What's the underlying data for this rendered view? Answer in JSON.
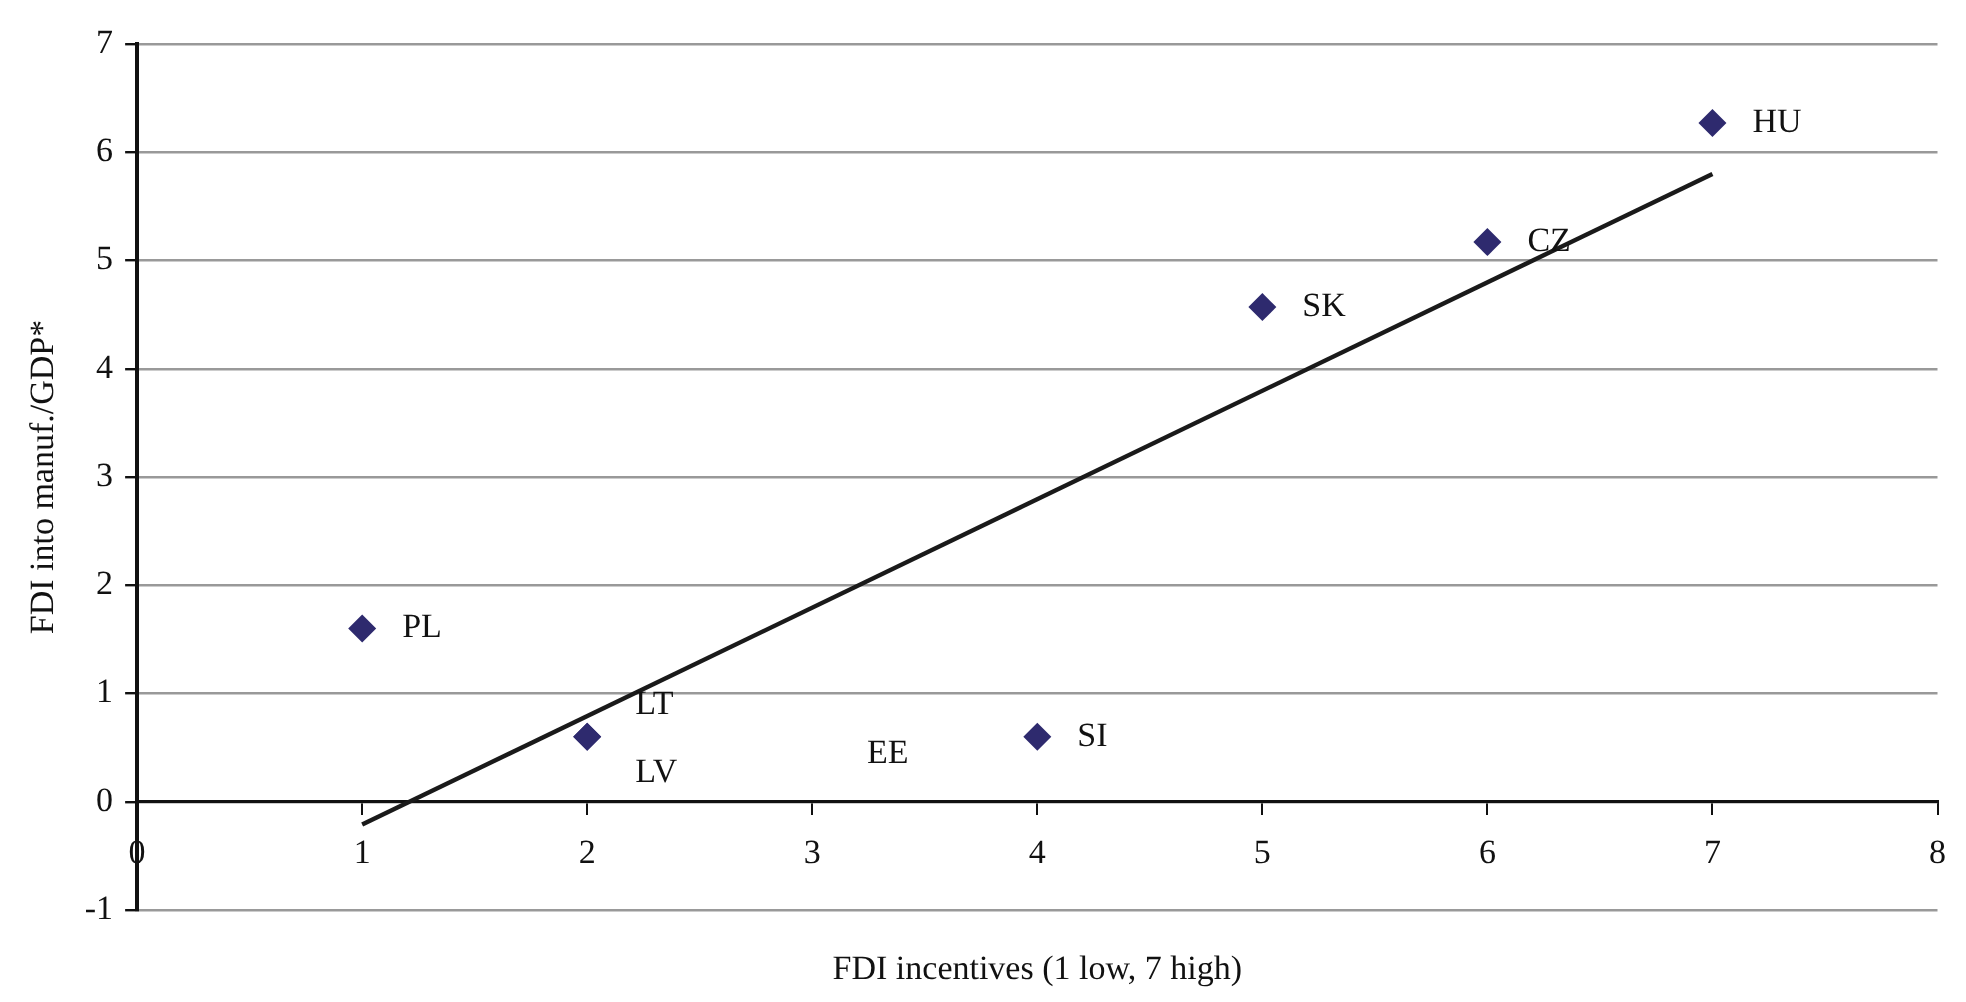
{
  "chart_data": {
    "type": "scatter",
    "xlabel": "FDI incentives (1 low, 7 high)",
    "ylabel": "FDI into manuf./GDP*",
    "xlim": [
      0,
      8
    ],
    "xticks": [
      0,
      1,
      2,
      3,
      4,
      5,
      6,
      7,
      8
    ],
    "ylim": [
      -1,
      7
    ],
    "yticks": [
      -1,
      0,
      1,
      2,
      3,
      4,
      5,
      6,
      7
    ],
    "grid": "y",
    "legend": false,
    "marker": "diamond",
    "series": [
      {
        "color": "#2e2a6e",
        "x": [
          1,
          2,
          2,
          4,
          5,
          6,
          7
        ],
        "values": [
          1.6,
          0.6,
          0.6,
          0.6,
          4.57,
          5.17,
          6.27
        ],
        "value_labels": [
          "PL",
          "LT",
          "LV",
          "SI",
          "SK",
          "CZ",
          "HU"
        ]
      },
      {
        "type": "line",
        "color": "#1a1a1a",
        "x": [
          1,
          7
        ],
        "values": [
          -0.21,
          5.8
        ],
        "marker": "none"
      }
    ],
    "annotations": [
      "EE"
    ]
  }
}
